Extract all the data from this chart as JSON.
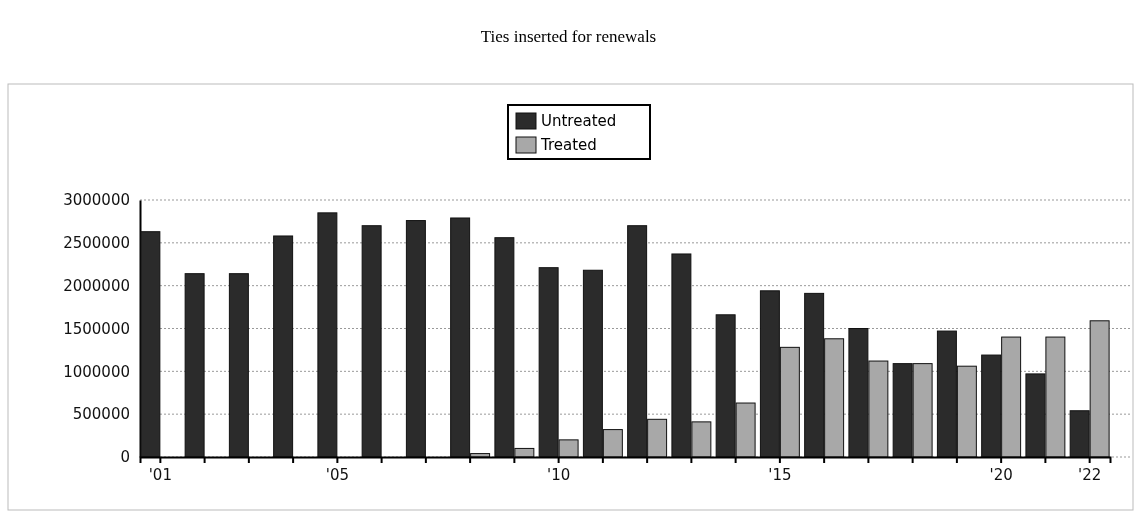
{
  "chart_data": {
    "type": "bar",
    "title": "Ties inserted for renewals",
    "categories": [
      "'01",
      null,
      null,
      null,
      "'05",
      null,
      null,
      null,
      null,
      "'10",
      null,
      null,
      null,
      null,
      "'15",
      null,
      null,
      null,
      null,
      "'20",
      null,
      "'22"
    ],
    "series": [
      {
        "name": "Untreated",
        "color": "#2b2b2b",
        "values": [
          2630000,
          2140000,
          2140000,
          2580000,
          2850000,
          2700000,
          2760000,
          2790000,
          2560000,
          2210000,
          2180000,
          2700000,
          2370000,
          1660000,
          1940000,
          1910000,
          1500000,
          1090000,
          1470000,
          1190000,
          970000,
          540000
        ]
      },
      {
        "name": "Treated",
        "color": "#a8a8a8",
        "values": [
          0,
          0,
          0,
          0,
          0,
          0,
          0,
          40000,
          100000,
          200000,
          320000,
          440000,
          410000,
          630000,
          1280000,
          1380000,
          1120000,
          1090000,
          1060000,
          1400000,
          1400000,
          1590000
        ]
      }
    ],
    "ylim": [
      0,
      3000000
    ],
    "yticks": [
      0,
      500000,
      1000000,
      1500000,
      2000000,
      2500000,
      3000000
    ],
    "grid": "y",
    "legend": "top"
  }
}
